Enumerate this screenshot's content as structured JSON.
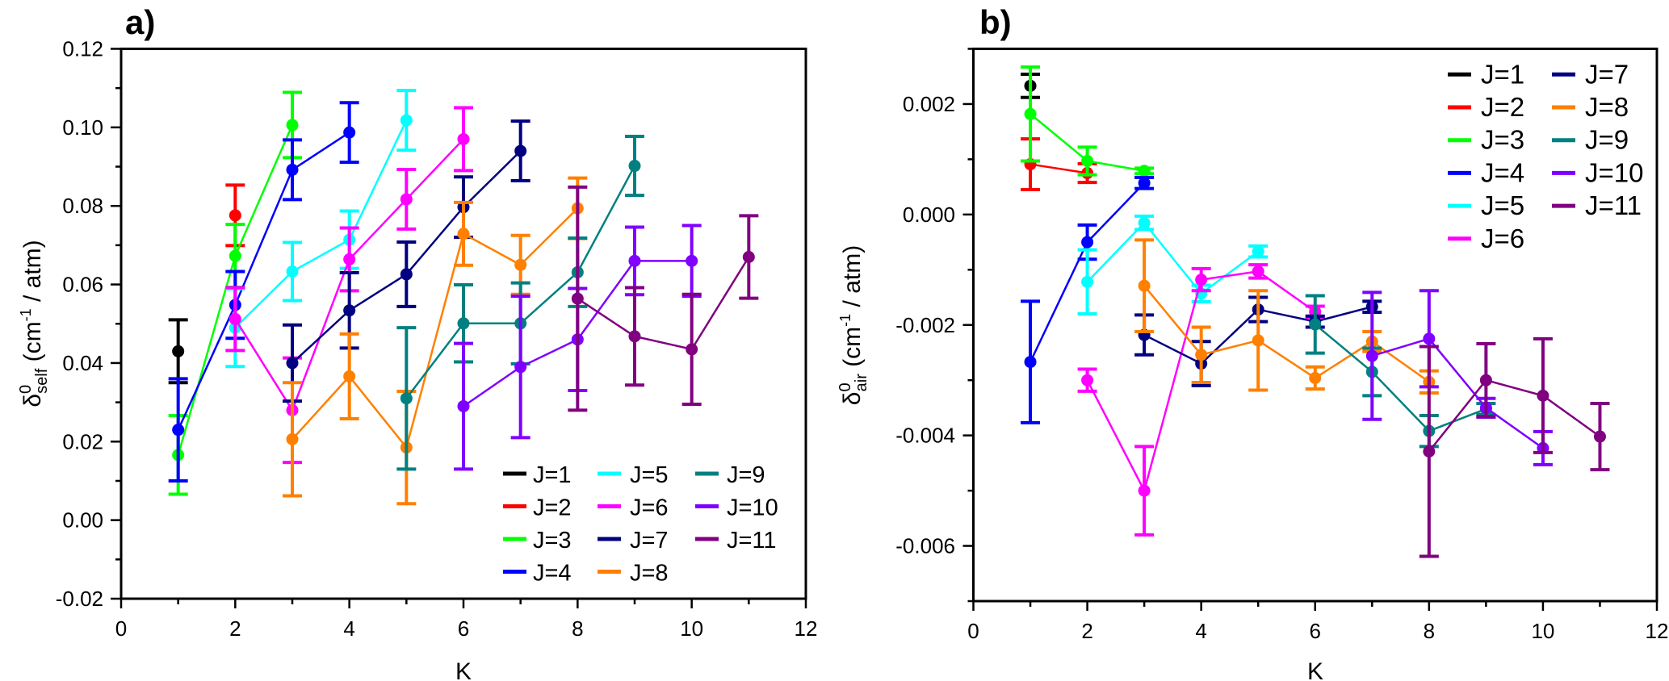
{
  "colors": {
    "J=1": "#000000",
    "J=2": "#ff0000",
    "J=3": "#00ff00",
    "J=4": "#0000ff",
    "J=5": "#00ffff",
    "J=6": "#ff00ff",
    "J=7": "#000080",
    "J=8": "#ff8000",
    "J=9": "#008080",
    "J=10": "#8000ff",
    "J=11": "#800080"
  },
  "chart_data": [
    {
      "type": "line",
      "panel_label": "a)",
      "xlabel": "K",
      "ylabel": {
        "symbol": "δ",
        "sup": "0",
        "sub": "self",
        "unit": " (cm",
        "unit_sup": "-1",
        "unit_end": " / atm)"
      },
      "xlim": [
        0,
        12
      ],
      "ylim": [
        -0.02,
        0.12
      ],
      "xticks": [
        "0",
        "2",
        "4",
        "6",
        "8",
        "10",
        "12"
      ],
      "xtick_values": [
        0,
        2,
        4,
        6,
        8,
        10,
        12
      ],
      "yticks": [
        "-0.02",
        "0.00",
        "0.02",
        "0.04",
        "0.06",
        "0.08",
        "0.10",
        "0.12"
      ],
      "ytick_values": [
        -0.02,
        0,
        0.02,
        0.04,
        0.06,
        0.08,
        0.1,
        0.12
      ],
      "yminor_step": 0.01,
      "grid": false,
      "legend_placement": "bottom-right",
      "legend_columns": 3,
      "series": [
        {
          "name": "J=1",
          "x": [
            1
          ],
          "y": [
            0.043
          ],
          "err": [
            0.008
          ]
        },
        {
          "name": "J=2",
          "x": [
            2
          ],
          "y": [
            0.0776
          ],
          "err": [
            0.0077
          ]
        },
        {
          "name": "J=3",
          "x": [
            1,
            2,
            3
          ],
          "y": [
            0.0166,
            0.0673,
            0.1006
          ],
          "err": [
            0.01,
            0.008,
            0.0083
          ]
        },
        {
          "name": "J=4",
          "x": [
            1,
            2,
            3,
            4
          ],
          "y": [
            0.023,
            0.0548,
            0.0892,
            0.0987
          ],
          "err": [
            0.013,
            0.0085,
            0.0076,
            0.0076
          ]
        },
        {
          "name": "J=5",
          "x": [
            2,
            3,
            4,
            5
          ],
          "y": [
            0.049,
            0.0633,
            0.0714,
            0.1018
          ],
          "err": [
            0.0099,
            0.0074,
            0.0073,
            0.0076
          ]
        },
        {
          "name": "J=6",
          "x": [
            2,
            3,
            4,
            5,
            6
          ],
          "y": [
            0.0512,
            0.028,
            0.0664,
            0.0817,
            0.097
          ],
          "err": [
            0.008,
            0.0133,
            0.008,
            0.0076,
            0.008
          ]
        },
        {
          "name": "J=7",
          "x": [
            3,
            4,
            5,
            6,
            7
          ],
          "y": [
            0.04,
            0.0534,
            0.0626,
            0.0797,
            0.094
          ],
          "err": [
            0.0097,
            0.0096,
            0.0082,
            0.0077,
            0.0076
          ]
        },
        {
          "name": "J=8",
          "x": [
            3,
            4,
            5,
            6,
            7,
            8
          ],
          "y": [
            0.0206,
            0.0366,
            0.0185,
            0.0729,
            0.065,
            0.0794
          ],
          "err": [
            0.0144,
            0.0108,
            0.0143,
            0.008,
            0.0075,
            0.0077
          ]
        },
        {
          "name": "J=9",
          "x": [
            5,
            6,
            7,
            8,
            9
          ],
          "y": [
            0.031,
            0.0501,
            0.0501,
            0.0631,
            0.0902
          ],
          "err": [
            0.018,
            0.0098,
            0.0103,
            0.0087,
            0.0075
          ]
        },
        {
          "name": "J=10",
          "x": [
            6,
            7,
            8,
            9,
            10
          ],
          "y": [
            0.029,
            0.039,
            0.046,
            0.066,
            0.066
          ],
          "err": [
            0.016,
            0.018,
            0.013,
            0.0086,
            0.009
          ]
        },
        {
          "name": "J=11",
          "x": [
            8,
            9,
            10,
            11
          ],
          "y": [
            0.0564,
            0.0468,
            0.0435,
            0.067
          ],
          "err": [
            0.0284,
            0.0124,
            0.014,
            0.0105
          ]
        }
      ]
    },
    {
      "type": "line",
      "panel_label": "b)",
      "xlabel": "K",
      "ylabel": {
        "symbol": "δ",
        "sup": "0",
        "sub": "air",
        "unit": " (cm",
        "unit_sup": "-1",
        "unit_end": " / atm)"
      },
      "xlim": [
        0,
        12
      ],
      "ylim": [
        -0.007,
        0.003
      ],
      "xticks": [
        "0",
        "2",
        "4",
        "6",
        "8",
        "10",
        "12"
      ],
      "xtick_values": [
        0,
        2,
        4,
        6,
        8,
        10,
        12
      ],
      "yticks": [
        "-0.006",
        "-0.004",
        "-0.002",
        "0.000",
        "0.002"
      ],
      "ytick_values": [
        -0.006,
        -0.004,
        -0.002,
        0,
        0.002
      ],
      "yminor_step": 0.001,
      "grid": false,
      "legend_placement": "top-right",
      "legend_columns": 2,
      "series": [
        {
          "name": "J=1",
          "x": [
            1
          ],
          "y": [
            0.00233
          ],
          "err": [
            0.00021
          ]
        },
        {
          "name": "J=2",
          "x": [
            1,
            2
          ],
          "y": [
            0.00091,
            0.00075
          ],
          "err": [
            0.00046,
            0.00017
          ]
        },
        {
          "name": "J=3",
          "x": [
            1,
            2,
            3
          ],
          "y": [
            0.00182,
            0.00097,
            0.00079
          ],
          "err": [
            0.00085,
            0.00025,
            5e-05
          ]
        },
        {
          "name": "J=4",
          "x": [
            1,
            2,
            3
          ],
          "y": [
            -0.00267,
            -0.0005,
            0.00057
          ],
          "err": [
            0.0011,
            0.00031,
            0.0001
          ]
        },
        {
          "name": "J=5",
          "x": [
            2,
            3,
            4,
            5
          ],
          "y": [
            -0.00122,
            -0.00015,
            -0.00143,
            -0.00067
          ],
          "err": [
            0.00058,
            0.00012,
            0.00015,
            0.0001
          ]
        },
        {
          "name": "J=6",
          "x": [
            2,
            3,
            4,
            5,
            6
          ],
          "y": [
            -0.003,
            -0.005,
            -0.00118,
            -0.00103,
            -0.00176
          ],
          "err": [
            0.0002,
            0.0008,
            0.0002,
            0.00012,
            0.0001
          ]
        },
        {
          "name": "J=7",
          "x": [
            3,
            4,
            5,
            6,
            7
          ],
          "y": [
            -0.00218,
            -0.0027,
            -0.00172,
            -0.00194,
            -0.00167
          ],
          "err": [
            0.00036,
            0.0004,
            0.00022,
            0.0001,
            0.0001
          ]
        },
        {
          "name": "J=8",
          "x": [
            3,
            4,
            5,
            6,
            7,
            8
          ],
          "y": [
            -0.00129,
            -0.00254,
            -0.00228,
            -0.00296,
            -0.0023,
            -0.00303
          ],
          "err": [
            0.00083,
            0.0005,
            0.0009,
            0.0002,
            0.00018,
            0.0002
          ]
        },
        {
          "name": "J=9",
          "x": [
            6,
            7,
            8,
            9
          ],
          "y": [
            -0.00199,
            -0.00285,
            -0.00392,
            -0.00352
          ],
          "err": [
            0.00052,
            0.00043,
            0.00028,
            0.0001
          ]
        },
        {
          "name": "J=10",
          "x": [
            7,
            8,
            9,
            10
          ],
          "y": [
            -0.00256,
            -0.00225,
            -0.0035,
            -0.00423
          ],
          "err": [
            0.00115,
            0.00087,
            0.00017,
            0.0003
          ]
        },
        {
          "name": "J=11",
          "x": [
            8,
            9,
            10,
            11
          ],
          "y": [
            -0.00429,
            -0.003,
            -0.00328,
            -0.00402
          ],
          "err": [
            0.0019,
            0.00066,
            0.00103,
            0.0006
          ]
        }
      ]
    }
  ]
}
